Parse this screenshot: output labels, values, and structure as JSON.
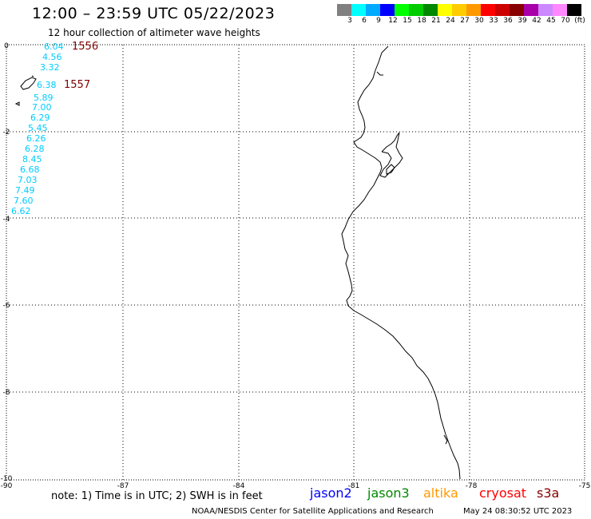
{
  "header": {
    "title": "12:00 – 23:59 UTC 05/22/2023",
    "subtitle": "12 hour collection of altimeter wave heights"
  },
  "colorbar": {
    "colors": [
      "#808080",
      "#00ffff",
      "#00aaff",
      "#0000ff",
      "#00ff00",
      "#00cc00",
      "#008800",
      "#ffff00",
      "#ffcc00",
      "#ff9900",
      "#ff0000",
      "#cc0000",
      "#880000",
      "#aa00aa",
      "#cc88ff",
      "#ff88ff",
      "#000000"
    ],
    "labels": [
      "3",
      "6",
      "9",
      "12",
      "15",
      "18",
      "21",
      "24",
      "27",
      "30",
      "33",
      "36",
      "39",
      "42",
      "45",
      "70",
      "(ft)"
    ]
  },
  "axes": {
    "y_labels": [
      "0",
      "-2",
      "-4",
      "-6",
      "-8",
      "-10"
    ],
    "x_labels": [
      "-90",
      "-87",
      "-84",
      "-81",
      "-78",
      "-75"
    ]
  },
  "track": {
    "color": "#00ccff",
    "label_color": "#800000",
    "points": [
      {
        "v": "6.04"
      },
      {
        "v": "4.56"
      },
      {
        "v": "3.32"
      },
      {
        "v": "6.38"
      },
      {
        "v": "5.89"
      },
      {
        "v": "7.00"
      },
      {
        "v": "6.29"
      },
      {
        "v": "5.45"
      },
      {
        "v": "6.26"
      },
      {
        "v": "6.28"
      },
      {
        "v": "8.45"
      },
      {
        "v": "6.68"
      },
      {
        "v": "7.03"
      },
      {
        "v": "7.49"
      },
      {
        "v": "7.60"
      },
      {
        "v": "6.62"
      }
    ],
    "time_labels": [
      "1556",
      "1557"
    ]
  },
  "note": "note: 1) Time is in UTC; 2) SWH is in feet",
  "satellites": [
    {
      "name": "jason2",
      "color": "#0000ff"
    },
    {
      "name": "jason3",
      "color": "#008800"
    },
    {
      "name": "altika",
      "color": "#ff9900"
    },
    {
      "name": "cryosat",
      "color": "#ff0000"
    },
    {
      "name": "s3a",
      "color": "#880000"
    }
  ],
  "footer": {
    "credit": "NOAA/NESDIS Center for Satellite Applications and Research",
    "timestamp": "May 24 08:30:52 UTC 2023"
  }
}
